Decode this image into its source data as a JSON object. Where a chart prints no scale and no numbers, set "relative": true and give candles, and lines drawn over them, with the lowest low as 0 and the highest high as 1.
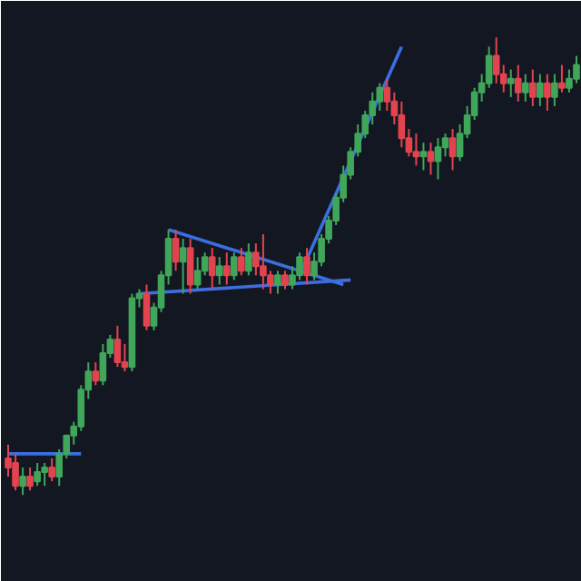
{
  "chart_data": {
    "type": "candlestick",
    "relative": true,
    "categories": [
      null,
      null,
      null,
      null,
      null,
      null,
      null,
      null,
      null,
      null,
      null,
      null,
      null,
      null,
      null,
      null,
      null,
      null,
      null,
      null,
      null,
      null,
      null,
      null,
      null,
      null,
      null,
      null,
      null,
      null,
      null,
      null,
      null,
      null,
      null,
      null,
      null,
      null,
      null,
      null,
      null,
      null,
      null,
      null,
      null,
      null,
      null,
      null,
      null,
      null,
      null,
      null,
      null,
      null,
      null,
      null,
      null,
      null,
      null,
      null,
      null,
      null,
      null,
      null,
      null,
      null,
      null,
      null,
      null,
      null,
      null,
      null,
      null,
      null,
      null,
      null,
      null,
      null,
      null
    ],
    "ohlc": [
      [
        0.08,
        0.11,
        0.04,
        0.06
      ],
      [
        0.07,
        0.09,
        0.01,
        0.02
      ],
      [
        0.02,
        0.06,
        0,
        0.04
      ],
      [
        0.04,
        0.06,
        0.01,
        0.02
      ],
      [
        0.03,
        0.07,
        0.02,
        0.05
      ],
      [
        0.05,
        0.07,
        0.02,
        0.06
      ],
      [
        0.06,
        0.08,
        0.03,
        0.04
      ],
      [
        0.04,
        0.1,
        0.02,
        0.09
      ],
      [
        0.09,
        0.13,
        0.08,
        0.13
      ],
      [
        0.13,
        0.16,
        0.11,
        0.15
      ],
      [
        0.15,
        0.24,
        0.14,
        0.23
      ],
      [
        0.23,
        0.29,
        0.21,
        0.27
      ],
      [
        0.27,
        0.29,
        0.24,
        0.25
      ],
      [
        0.25,
        0.33,
        0.24,
        0.31
      ],
      [
        0.31,
        0.35,
        0.3,
        0.34
      ],
      [
        0.34,
        0.37,
        0.28,
        0.29
      ],
      [
        0.29,
        0.33,
        0.27,
        0.28
      ],
      [
        0.28,
        0.44,
        0.27,
        0.43
      ],
      [
        0.43,
        0.45,
        0.41,
        0.44
      ],
      [
        0.44,
        0.46,
        0.36,
        0.37
      ],
      [
        0.37,
        0.42,
        0.36,
        0.41
      ],
      [
        0.41,
        0.49,
        0.4,
        0.48
      ],
      [
        0.48,
        0.58,
        0.46,
        0.56
      ],
      [
        0.56,
        0.58,
        0.49,
        0.51
      ],
      [
        0.51,
        0.56,
        0.44,
        0.54
      ],
      [
        0.54,
        0.56,
        0.44,
        0.46
      ],
      [
        0.46,
        0.52,
        0.45,
        0.49
      ],
      [
        0.49,
        0.53,
        0.48,
        0.52
      ],
      [
        0.52,
        0.54,
        0.45,
        0.48
      ],
      [
        0.48,
        0.52,
        0.46,
        0.5
      ],
      [
        0.5,
        0.53,
        0.46,
        0.48
      ],
      [
        0.48,
        0.53,
        0.47,
        0.52
      ],
      [
        0.52,
        0.54,
        0.48,
        0.49
      ],
      [
        0.49,
        0.55,
        0.48,
        0.53
      ],
      [
        0.53,
        0.55,
        0.48,
        0.5
      ],
      [
        0.5,
        0.57,
        0.45,
        0.48
      ],
      [
        0.48,
        0.49,
        0.44,
        0.46
      ],
      [
        0.46,
        0.49,
        0.44,
        0.48
      ],
      [
        0.48,
        0.49,
        0.45,
        0.46
      ],
      [
        0.46,
        0.5,
        0.45,
        0.48
      ],
      [
        0.48,
        0.53,
        0.47,
        0.52
      ],
      [
        0.52,
        0.54,
        0.46,
        0.48
      ],
      [
        0.48,
        0.53,
        0.47,
        0.51
      ],
      [
        0.51,
        0.57,
        0.5,
        0.56
      ],
      [
        0.56,
        0.61,
        0.55,
        0.6
      ],
      [
        0.6,
        0.66,
        0.59,
        0.65
      ],
      [
        0.65,
        0.72,
        0.64,
        0.7
      ],
      [
        0.7,
        0.76,
        0.69,
        0.75
      ],
      [
        0.75,
        0.81,
        0.74,
        0.79
      ],
      [
        0.79,
        0.84,
        0.78,
        0.83
      ],
      [
        0.83,
        0.88,
        0.81,
        0.86
      ],
      [
        0.86,
        0.9,
        0.84,
        0.89
      ],
      [
        0.89,
        0.91,
        0.84,
        0.86
      ],
      [
        0.86,
        0.88,
        0.81,
        0.83
      ],
      [
        0.83,
        0.86,
        0.76,
        0.78
      ],
      [
        0.78,
        0.8,
        0.74,
        0.75
      ],
      [
        0.75,
        0.79,
        0.72,
        0.74
      ],
      [
        0.74,
        0.77,
        0.71,
        0.75
      ],
      [
        0.75,
        0.77,
        0.7,
        0.73
      ],
      [
        0.73,
        0.78,
        0.69,
        0.76
      ],
      [
        0.76,
        0.79,
        0.74,
        0.78
      ],
      [
        0.78,
        0.8,
        0.71,
        0.74
      ],
      [
        0.74,
        0.81,
        0.73,
        0.79
      ],
      [
        0.79,
        0.85,
        0.78,
        0.83
      ],
      [
        0.83,
        0.89,
        0.82,
        0.88
      ],
      [
        0.88,
        0.92,
        0.86,
        0.9
      ],
      [
        0.9,
        0.98,
        0.89,
        0.96
      ],
      [
        0.96,
        1,
        0.9,
        0.92
      ],
      [
        0.92,
        0.94,
        0.88,
        0.9
      ],
      [
        0.9,
        0.93,
        0.87,
        0.91
      ],
      [
        0.91,
        0.94,
        0.86,
        0.88
      ],
      [
        0.88,
        0.92,
        0.86,
        0.9
      ],
      [
        0.9,
        0.93,
        0.85,
        0.87
      ],
      [
        0.87,
        0.92,
        0.85,
        0.9
      ],
      [
        0.9,
        0.92,
        0.84,
        0.87
      ],
      [
        0.87,
        0.92,
        0.85,
        0.9
      ],
      [
        0.9,
        0.94,
        0.88,
        0.89
      ],
      [
        0.89,
        0.93,
        0.88,
        0.91
      ],
      [
        0.91,
        0.96,
        0.9,
        0.94
      ]
    ],
    "colors": [
      "#e2444f",
      "#e2444f",
      "#3fa65a",
      "#e2444f",
      "#3fa65a",
      "#3fa65a",
      "#e2444f",
      "#3fa65a",
      "#3fa65a",
      "#3fa65a",
      "#3fa65a",
      "#3fa65a",
      "#e2444f",
      "#3fa65a",
      "#3fa65a",
      "#e2444f",
      "#e2444f",
      "#3fa65a",
      "#3fa65a",
      "#e2444f",
      "#3fa65a",
      "#3fa65a",
      "#3fa65a",
      "#e2444f",
      "#3fa65a",
      "#e2444f",
      "#3fa65a",
      "#3fa65a",
      "#e2444f",
      "#3fa65a",
      "#e2444f",
      "#3fa65a",
      "#e2444f",
      "#3fa65a",
      "#e2444f",
      "#e2444f",
      "#e2444f",
      "#3fa65a",
      "#e2444f",
      "#3fa65a",
      "#3fa65a",
      "#e2444f",
      "#3fa65a",
      "#3fa65a",
      "#3fa65a",
      "#3fa65a",
      "#3fa65a",
      "#3fa65a",
      "#3fa65a",
      "#3fa65a",
      "#3fa65a",
      "#3fa65a",
      "#e2444f",
      "#e2444f",
      "#e2444f",
      "#e2444f",
      "#e2444f",
      "#3fa65a",
      "#e2444f",
      "#3fa65a",
      "#3fa65a",
      "#e2444f",
      "#3fa65a",
      "#3fa65a",
      "#3fa65a",
      "#3fa65a",
      "#3fa65a",
      "#e2444f",
      "#e2444f",
      "#3fa65a",
      "#e2444f",
      "#3fa65a",
      "#e2444f",
      "#3fa65a",
      "#e2444f",
      "#3fa65a",
      "#e2444f",
      "#3fa65a",
      "#3fa65a"
    ],
    "series": [
      {
        "type": "line",
        "color": "#3b6fe0",
        "values": [
          0.09,
          null,
          null,
          null,
          null,
          null,
          null,
          null,
          null,
          null,
          0.09,
          null,
          null,
          null,
          null,
          null,
          null,
          null,
          null,
          null,
          null,
          null,
          null,
          null,
          null,
          null,
          null,
          null,
          null,
          null,
          null,
          null,
          null,
          null,
          null,
          null,
          null,
          null,
          null,
          null,
          null,
          null,
          null,
          null,
          null,
          null,
          null,
          null,
          null,
          null,
          null,
          null,
          null,
          null,
          null,
          null,
          null,
          null,
          null,
          null,
          null,
          null,
          null,
          null,
          null,
          null,
          null,
          null,
          null,
          null,
          null,
          null,
          null,
          null,
          null,
          null,
          null,
          null,
          null
        ]
      },
      {
        "type": "line",
        "color": "#3b6fe0",
        "values": [
          null,
          null,
          null,
          null,
          null,
          null,
          null,
          null,
          null,
          null,
          null,
          null,
          null,
          null,
          null,
          null,
          null,
          null,
          0.44,
          null,
          null,
          null,
          null,
          null,
          null,
          null,
          null,
          null,
          null,
          null,
          null,
          null,
          null,
          null,
          null,
          null,
          null,
          null,
          null,
          null,
          null,
          null,
          null,
          null,
          null,
          null,
          null,
          0.47,
          null,
          null,
          null,
          null,
          null,
          null,
          null,
          null,
          null,
          null,
          null,
          null,
          null,
          null,
          null,
          null,
          null,
          null,
          null,
          null,
          null,
          null,
          null,
          null,
          null,
          null,
          null,
          null,
          null,
          null,
          null
        ]
      },
      {
        "type": "line",
        "color": "#3b6fe0",
        "values": [
          null,
          null,
          null,
          null,
          null,
          null,
          null,
          null,
          null,
          null,
          null,
          null,
          null,
          null,
          null,
          null,
          null,
          null,
          null,
          null,
          null,
          null,
          0.58,
          null,
          null,
          null,
          null,
          null,
          null,
          null,
          null,
          null,
          null,
          null,
          null,
          null,
          null,
          null,
          null,
          null,
          null,
          null,
          null,
          null,
          null,
          null,
          0.46,
          null,
          null,
          null,
          null,
          null,
          null,
          null,
          null,
          null,
          null,
          null,
          null,
          null,
          null,
          null,
          null,
          null,
          null,
          null,
          null,
          null,
          null,
          null,
          null,
          null,
          null,
          null,
          null,
          null,
          null,
          null,
          null
        ]
      },
      {
        "type": "line",
        "color": "#3b6fe0",
        "values": [
          null,
          null,
          null,
          null,
          null,
          null,
          null,
          null,
          null,
          null,
          null,
          null,
          null,
          null,
          null,
          null,
          null,
          null,
          null,
          null,
          null,
          null,
          null,
          null,
          null,
          null,
          null,
          null,
          null,
          null,
          null,
          null,
          null,
          null,
          null,
          null,
          null,
          null,
          null,
          null,
          0.48,
          null,
          null,
          null,
          null,
          null,
          null,
          null,
          null,
          null,
          null,
          null,
          null,
          null,
          0.98,
          null,
          null,
          null,
          null,
          null,
          null,
          null,
          null,
          null,
          null,
          null,
          null,
          null,
          null,
          null,
          null,
          null,
          null,
          null,
          null,
          null,
          null,
          null,
          null
        ]
      }
    ]
  }
}
